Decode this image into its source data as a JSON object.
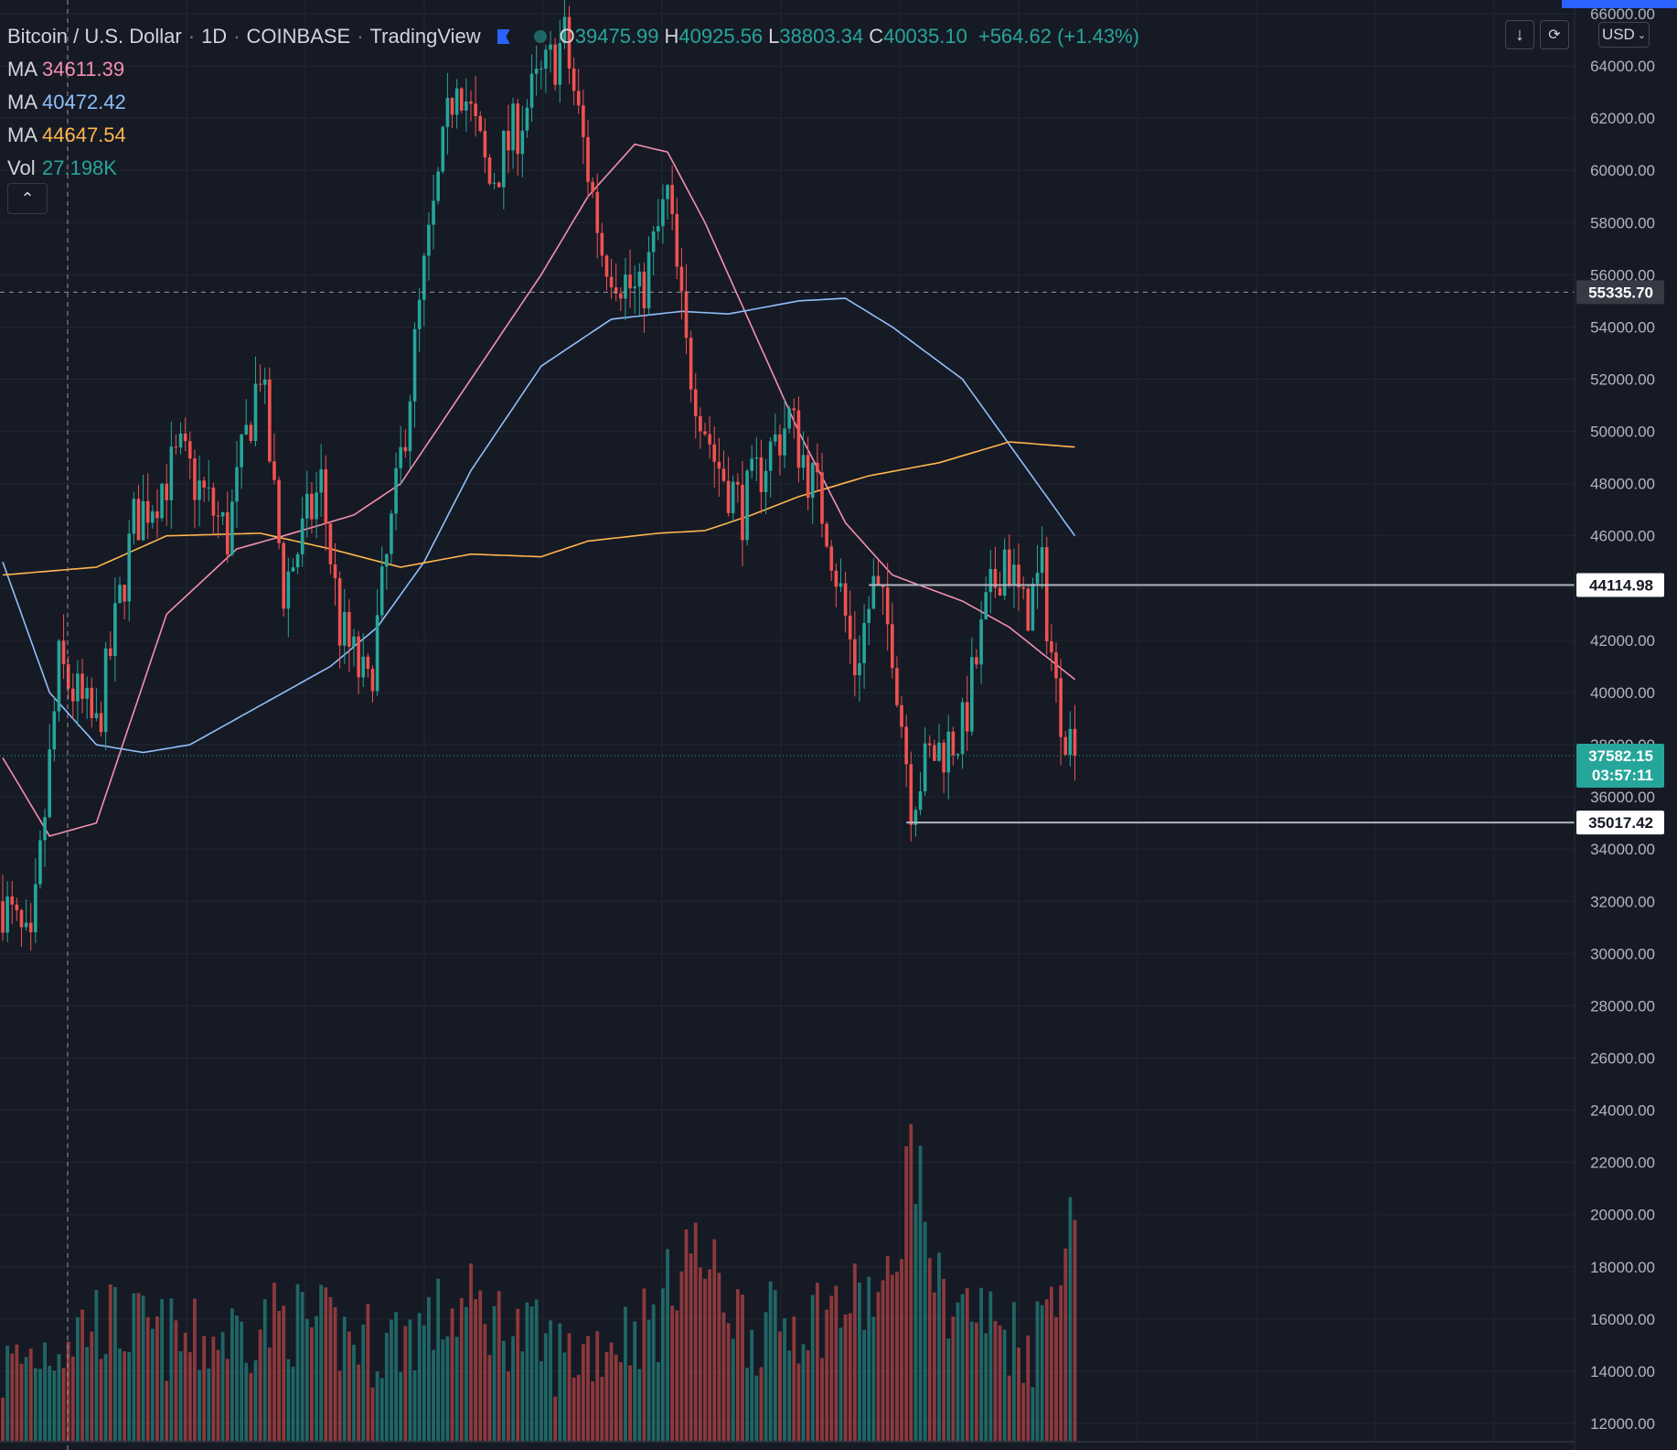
{
  "header": {
    "symbol": "Bitcoin / U.S. Dollar",
    "interval": "1D",
    "exchange": "COINBASE",
    "provider": "TradingView",
    "ohlc": {
      "o": "39475.99",
      "h": "40925.56",
      "l": "38803.34",
      "c": "40035.10"
    },
    "change": "+564.62 (+1.43%)",
    "currency": "USD"
  },
  "indicators": [
    {
      "label": "MA",
      "value": "34611.39",
      "color": "#f48fb1"
    },
    {
      "label": "MA",
      "value": "40472.42",
      "color": "#90bff9"
    },
    {
      "label": "MA",
      "value": "44647.54",
      "color": "#ffb74d"
    },
    {
      "label": "Vol",
      "value": "27.198K",
      "color": "#26a69a"
    }
  ],
  "colors": {
    "up": "#26a69a",
    "down": "#ef5350",
    "background": "#161a25",
    "grid": "#232632",
    "text": "#d1d4dc"
  },
  "chart_data": {
    "type": "candlestick",
    "ylim": [
      12000,
      66000
    ],
    "y_ticks": [
      "12000.00",
      "14000.00",
      "16000.00",
      "18000.00",
      "20000.00",
      "22000.00",
      "24000.00",
      "26000.00",
      "28000.00",
      "30000.00",
      "32000.00",
      "34000.00",
      "36000.00",
      "38000.00",
      "40000.00",
      "42000.00",
      "44000.00",
      "46000.00",
      "48000.00",
      "50000.00",
      "52000.00",
      "54000.00",
      "56000.00",
      "58000.00",
      "60000.00",
      "62000.00",
      "64000.00",
      "66000.00"
    ],
    "price_labels": [
      {
        "text": "55335.70",
        "value": 55335.7,
        "style": "crosshair"
      },
      {
        "text": "44114.98",
        "value": 44114.98,
        "style": "line"
      },
      {
        "text": "37582.15",
        "value": 37582.15,
        "style": "last",
        "sub": "03:57:11"
      },
      {
        "text": "35017.42",
        "value": 35017.42,
        "style": "line"
      }
    ],
    "horizontal_lines": [
      {
        "value": 44114.98,
        "from_index": 185
      },
      {
        "value": 35017.42,
        "from_index": 193
      }
    ],
    "anchors": [
      [
        0,
        32000
      ],
      [
        6,
        29800
      ],
      [
        12,
        41000
      ],
      [
        20,
        38500
      ],
      [
        28,
        46500
      ],
      [
        38,
        49000
      ],
      [
        48,
        46000
      ],
      [
        55,
        52500
      ],
      [
        60,
        44000
      ],
      [
        68,
        48000
      ],
      [
        72,
        42500
      ],
      [
        78,
        40000
      ],
      [
        84,
        47500
      ],
      [
        90,
        56000
      ],
      [
        97,
        64000
      ],
      [
        104,
        59500
      ],
      [
        112,
        62500
      ],
      [
        120,
        65000
      ],
      [
        128,
        57000
      ],
      [
        136,
        55000
      ],
      [
        142,
        59000
      ],
      [
        146,
        53000
      ],
      [
        152,
        49000
      ],
      [
        158,
        47000
      ],
      [
        163,
        49000
      ],
      [
        168,
        50500
      ],
      [
        176,
        46500
      ],
      [
        182,
        41000
      ],
      [
        186,
        44000
      ],
      [
        190,
        42000
      ],
      [
        194,
        36000
      ],
      [
        198,
        37500
      ],
      [
        205,
        38500
      ],
      [
        210,
        43000
      ],
      [
        214,
        45500
      ],
      [
        218,
        43000
      ],
      [
        222,
        44500
      ],
      [
        225,
        40000
      ],
      [
        229,
        37582.15
      ]
    ],
    "volume_anchors": [
      [
        0,
        14000
      ],
      [
        20,
        16000
      ],
      [
        40,
        15000
      ],
      [
        60,
        16000
      ],
      [
        80,
        15000
      ],
      [
        100,
        16500
      ],
      [
        120,
        14500
      ],
      [
        140,
        16000
      ],
      [
        146,
        19000
      ],
      [
        160,
        15500
      ],
      [
        190,
        17000
      ],
      [
        194,
        23000
      ],
      [
        200,
        17000
      ],
      [
        220,
        15000
      ],
      [
        229,
        20000
      ]
    ],
    "ma_series": [
      {
        "name": "MA",
        "color": "#f48fb1",
        "points": [
          [
            0,
            37500
          ],
          [
            10,
            34500
          ],
          [
            20,
            35000
          ],
          [
            35,
            43000
          ],
          [
            50,
            45500
          ],
          [
            60,
            46000
          ],
          [
            75,
            46800
          ],
          [
            85,
            48000
          ],
          [
            100,
            52000
          ],
          [
            115,
            56000
          ],
          [
            125,
            59000
          ],
          [
            135,
            61000
          ],
          [
            142,
            60700
          ],
          [
            150,
            58000
          ],
          [
            160,
            54000
          ],
          [
            170,
            50000
          ],
          [
            180,
            46500
          ],
          [
            190,
            44500
          ],
          [
            205,
            43500
          ],
          [
            215,
            42500
          ],
          [
            229,
            40500
          ]
        ]
      },
      {
        "name": "MA",
        "color": "#90bff9",
        "points": [
          [
            0,
            45000
          ],
          [
            10,
            40000
          ],
          [
            20,
            38000
          ],
          [
            30,
            37700
          ],
          [
            40,
            38000
          ],
          [
            55,
            39500
          ],
          [
            70,
            41000
          ],
          [
            80,
            42500
          ],
          [
            90,
            45000
          ],
          [
            100,
            48500
          ],
          [
            115,
            52500
          ],
          [
            130,
            54300
          ],
          [
            145,
            54600
          ],
          [
            155,
            54500
          ],
          [
            170,
            55000
          ],
          [
            180,
            55100
          ],
          [
            190,
            54000
          ],
          [
            205,
            52000
          ],
          [
            215,
            49500
          ],
          [
            229,
            46000
          ]
        ]
      },
      {
        "name": "MA",
        "color": "#ffb74d",
        "points": [
          [
            0,
            44500
          ],
          [
            20,
            44800
          ],
          [
            35,
            46000
          ],
          [
            55,
            46100
          ],
          [
            70,
            45500
          ],
          [
            85,
            44800
          ],
          [
            100,
            45300
          ],
          [
            115,
            45200
          ],
          [
            125,
            45800
          ],
          [
            140,
            46100
          ],
          [
            150,
            46200
          ],
          [
            160,
            46800
          ],
          [
            170,
            47500
          ],
          [
            185,
            48300
          ],
          [
            200,
            48800
          ],
          [
            215,
            49600
          ],
          [
            229,
            49400
          ]
        ]
      }
    ]
  }
}
